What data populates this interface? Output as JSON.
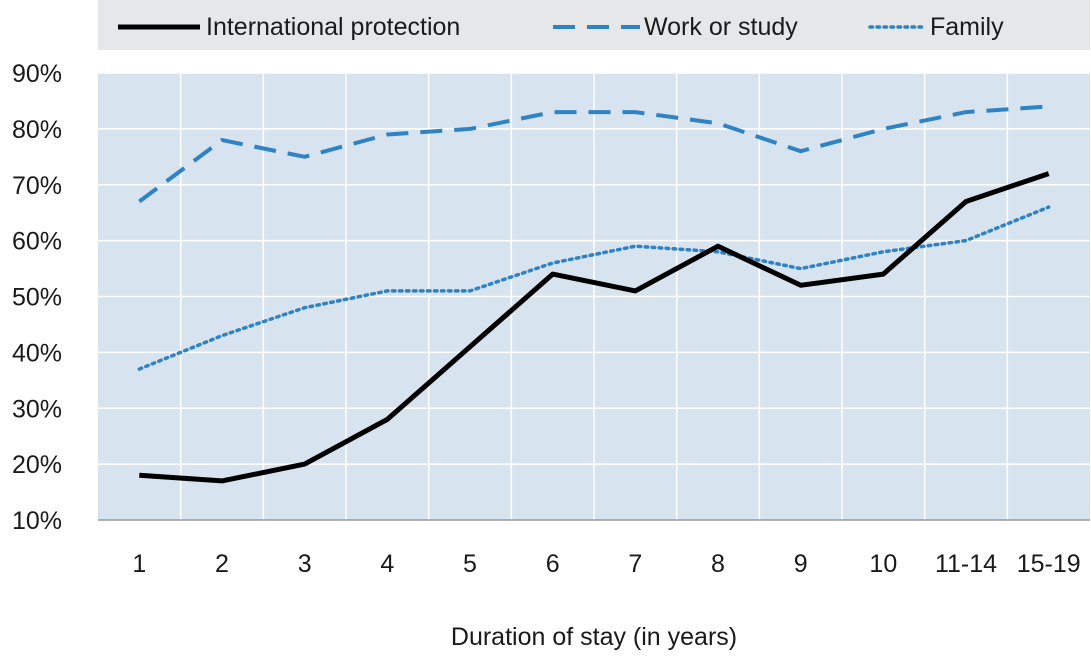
{
  "chart_data": {
    "type": "line",
    "xlabel": "Duration of stay (in years)",
    "ylabel": "",
    "categories": [
      "1",
      "2",
      "3",
      "4",
      "5",
      "6",
      "7",
      "8",
      "9",
      "10",
      "11-14",
      "15-19"
    ],
    "ylim": [
      10,
      90
    ],
    "yticks": [
      10,
      20,
      30,
      40,
      50,
      60,
      70,
      80,
      90
    ],
    "ytick_labels": [
      "10%",
      "20%",
      "30%",
      "40%",
      "50%",
      "60%",
      "70%",
      "80%",
      "90%"
    ],
    "grid": true,
    "legend_position": "top",
    "series": [
      {
        "name": "International protection",
        "style": "solid",
        "values": [
          18,
          17,
          20,
          28,
          41,
          54,
          51,
          59,
          52,
          54,
          67,
          72
        ]
      },
      {
        "name": "Work or study",
        "style": "dashed",
        "values": [
          67,
          78,
          75,
          79,
          80,
          83,
          83,
          81,
          76,
          80,
          83,
          84
        ]
      },
      {
        "name": "Family",
        "style": "dotted",
        "values": [
          37,
          43,
          48,
          51,
          51,
          56,
          59,
          58,
          55,
          58,
          60,
          66
        ]
      }
    ]
  },
  "colors": {
    "plot_background": "#d7e3ee",
    "legend_background": "#e6e7e8",
    "gridline": "#ffffff",
    "international_protection": "#000000",
    "work_or_study": "#2f82c4",
    "family": "#2f82c4"
  }
}
